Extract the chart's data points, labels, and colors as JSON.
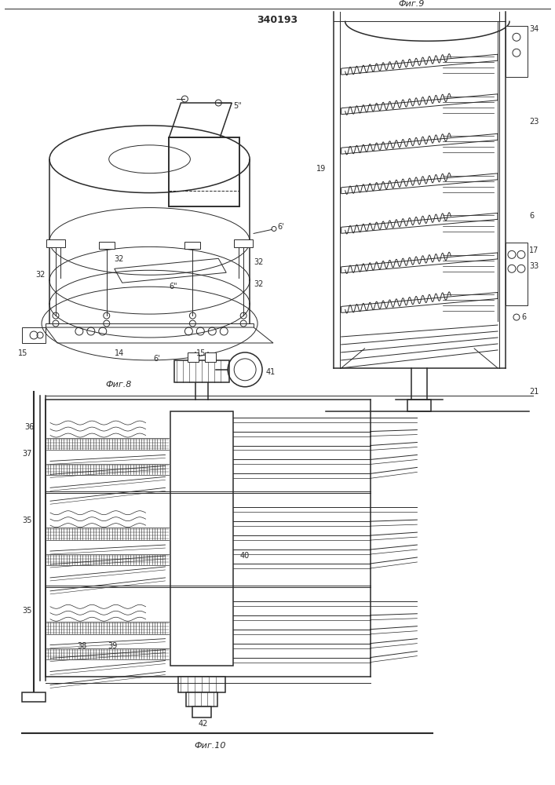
{
  "title": "340193",
  "fig8_label": "Фиг.8",
  "fig9_label": "Фиг.9",
  "fig10_label": "Фиг.10",
  "bg_color": "#ffffff",
  "line_color": "#2a2a2a",
  "labels": {
    "5u": "5\"",
    "6p": "6'",
    "6u": "6\"",
    "6pp": "6'",
    "14": "14",
    "15a": "15",
    "15b": "15",
    "32a": "32",
    "32b": "32",
    "32c": "32",
    "32d": "32",
    "6a": "6",
    "6b": "6",
    "17": "17",
    "19": "19",
    "21": "21",
    "23": "23",
    "33": "33",
    "34": "34",
    "35a": "35",
    "35b": "35",
    "36": "36",
    "37": "37",
    "38": "38",
    "39": "39",
    "40": "40",
    "41": "41",
    "42": "42"
  }
}
